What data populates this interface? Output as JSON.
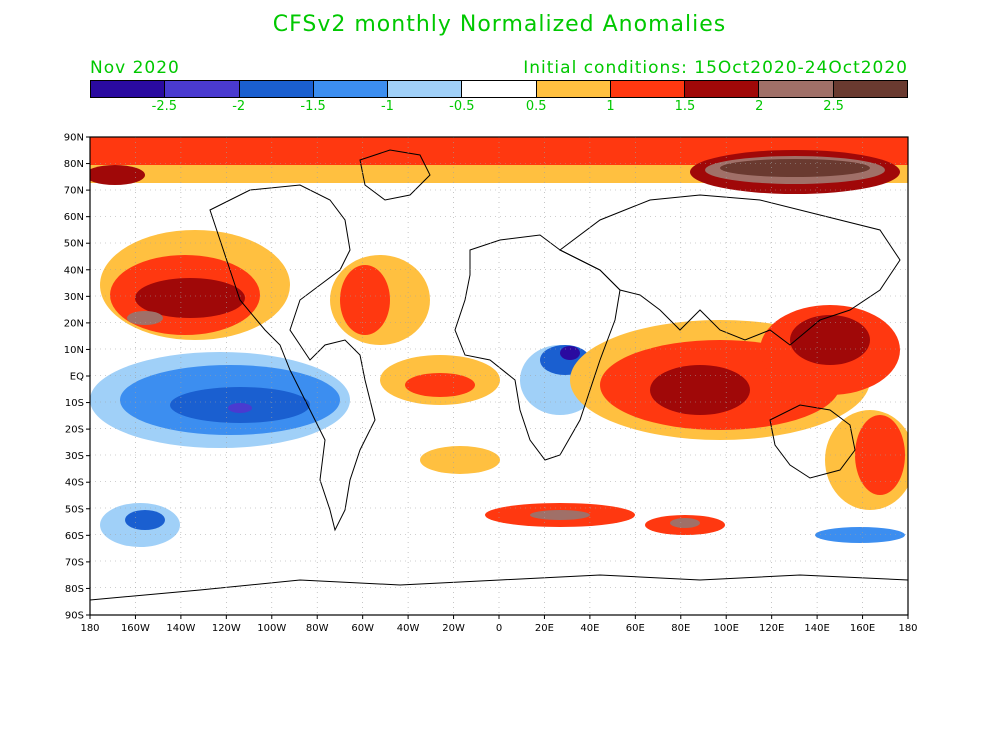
{
  "title": "CFSv2 monthly Normalized Anomalies",
  "month": "Nov 2020",
  "initial_conditions": "Initial conditions: 15Oct2020-24Oct2020",
  "colorbar": {
    "colors": [
      "#2a0aa0",
      "#4a3ad0",
      "#1a5fd0",
      "#3c8ef0",
      "#a0d0f8",
      "#ffffff",
      "#ffc040",
      "#ff3810",
      "#a00808",
      "#a07068",
      "#6a3a30"
    ],
    "labels": [
      "-2.5",
      "-2",
      "-1.5",
      "-1",
      "-0.5",
      "0.5",
      "1",
      "1.5",
      "2",
      "2.5"
    ]
  },
  "lat_labels": [
    "90N",
    "80N",
    "70N",
    "60N",
    "50N",
    "40N",
    "30N",
    "20N",
    "10N",
    "EQ",
    "10S",
    "20S",
    "30S",
    "40S",
    "50S",
    "60S",
    "70S",
    "80S",
    "90S"
  ],
  "lon_labels": [
    "180",
    "160W",
    "140W",
    "120W",
    "100W",
    "80W",
    "60W",
    "40W",
    "20W",
    "0",
    "20E",
    "40E",
    "60E",
    "80E",
    "100E",
    "120E",
    "140E",
    "160E",
    "180"
  ]
}
